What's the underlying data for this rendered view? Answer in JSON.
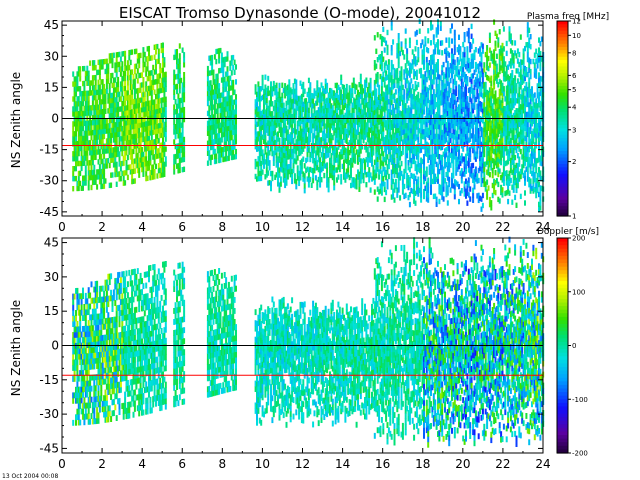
{
  "title": "EISCAT Tromso Dynasonde (O-mode),  20041012",
  "timestamp": "13 Oct 2004 00:08",
  "panels": [
    {
      "ylabel": "NS Zenith angle",
      "colorbar": {
        "title": "Plasma freq [MHz]",
        "ticks": [
          "12",
          "10",
          "8",
          "6",
          "5",
          "4",
          "3",
          "2",
          "1"
        ],
        "tick_values": [
          12,
          10,
          8,
          6,
          5,
          4,
          3,
          2,
          1
        ],
        "colormap": "rainbow-log",
        "range": [
          1,
          12
        ]
      }
    },
    {
      "ylabel": "NS Zenith angle",
      "colorbar": {
        "title": "Doppler [m/s]",
        "ticks": [
          "200",
          "100",
          "0",
          "-100",
          "-200"
        ],
        "tick_values": [
          200,
          100,
          0,
          -100,
          -200
        ],
        "colormap": "rainbow-linear",
        "range": [
          -200,
          200
        ]
      }
    }
  ],
  "chart_data": [
    {
      "type": "heatmap",
      "title": "EISCAT Tromso Dynasonde (O-mode),  20041012",
      "xlabel": "",
      "ylabel": "NS Zenith angle",
      "xlim": [
        0,
        24
      ],
      "ylim": [
        -47,
        47
      ],
      "x_ticks": [
        0,
        2,
        4,
        6,
        8,
        10,
        12,
        14,
        16,
        18,
        20,
        22,
        24
      ],
      "y_ticks": [
        45,
        30,
        15,
        0,
        -15,
        -30,
        -45
      ],
      "grid": false,
      "reference_lines": [
        {
          "y": 0,
          "color": "#000000"
        },
        {
          "y": -13,
          "color": "#ff0000"
        }
      ],
      "value_label": "Plasma freq [MHz]",
      "value_range": [
        1,
        12
      ],
      "activity_windows_hours": [
        [
          0.5,
          5.2
        ],
        [
          5.5,
          6.1
        ],
        [
          7.2,
          8.7
        ],
        [
          9.6,
          24
        ]
      ],
      "typical_value_by_hour": [
        4.5,
        4.5,
        4.5,
        5.2,
        5.0,
        4.0,
        4.0,
        3.8,
        3.8,
        3.5,
        3.5,
        3.5,
        3.5,
        3.6,
        3.7,
        3.6,
        3.3,
        3.0,
        2.8,
        2.6,
        2.5,
        4.5,
        3.5,
        3.0
      ]
    },
    {
      "type": "heatmap",
      "title": "",
      "xlabel": "",
      "ylabel": "NS Zenith angle",
      "xlim": [
        0,
        24
      ],
      "ylim": [
        -47,
        47
      ],
      "x_ticks": [
        0,
        2,
        4,
        6,
        8,
        10,
        12,
        14,
        16,
        18,
        20,
        22,
        24
      ],
      "y_ticks": [
        45,
        30,
        15,
        0,
        -15,
        -30,
        -45
      ],
      "grid": false,
      "reference_lines": [
        {
          "y": 0,
          "color": "#000000"
        },
        {
          "y": -13,
          "color": "#ff0000"
        }
      ],
      "value_label": "Doppler [m/s]",
      "value_range": [
        -200,
        200
      ],
      "activity_windows_hours": [
        [
          0.5,
          5.2
        ],
        [
          5.5,
          6.1
        ],
        [
          7.2,
          8.7
        ],
        [
          9.6,
          24
        ]
      ],
      "typical_value_by_hour": [
        0,
        10,
        20,
        10,
        0,
        0,
        0,
        0,
        0,
        -10,
        -10,
        -10,
        -10,
        -5,
        0,
        0,
        0,
        0,
        -10,
        -20,
        -30,
        -20,
        -10,
        0
      ]
    }
  ]
}
